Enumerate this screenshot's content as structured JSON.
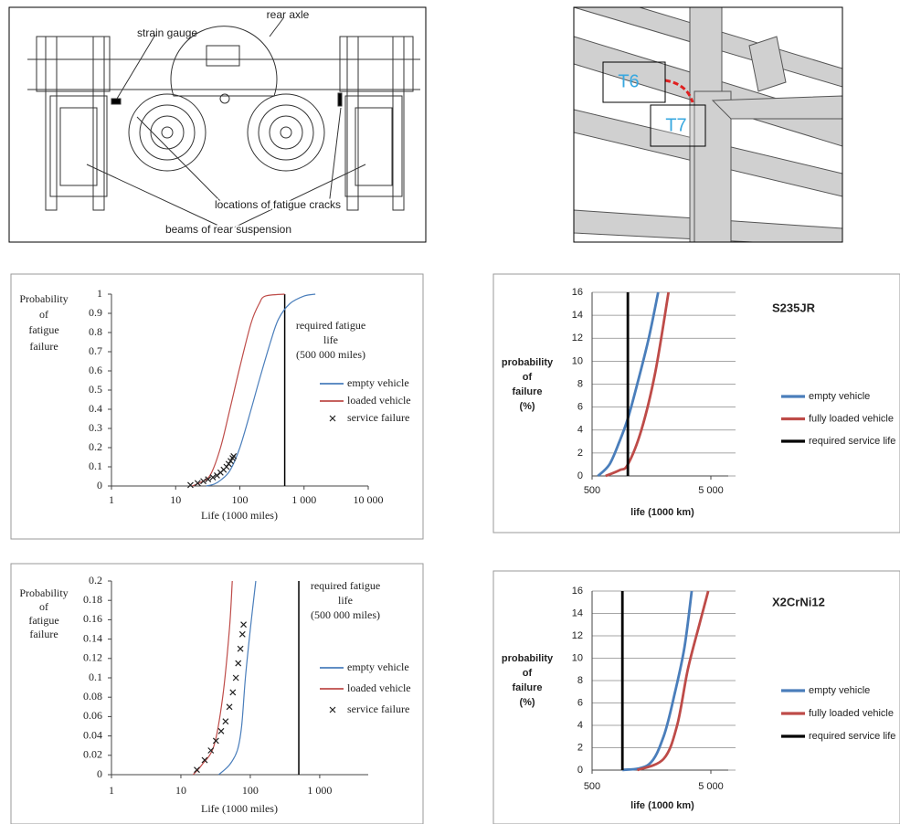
{
  "diagrams": {
    "axle": {
      "labels": [
        "rear axle",
        "strain gauge",
        "locations of fatigue cracks",
        "beams of rear suspension"
      ]
    },
    "frame": {
      "labels": [
        "T6",
        "T7"
      ]
    }
  },
  "chart_data": [
    {
      "type": "line",
      "xscale": "log",
      "grid": false,
      "legend": "right",
      "ylabel": [
        "Probability",
        "of",
        "fatigue",
        "failure"
      ],
      "xlabel": "Life (1000 miles)",
      "annotation": [
        "required fatigue",
        "life",
        "(500 000 miles)"
      ],
      "reference_x": 500,
      "xlim": [
        1,
        10000
      ],
      "xticks": [
        1,
        10,
        100,
        {
          "value": 1000,
          "label": "1 000"
        },
        {
          "value": 10000,
          "label": "10 000"
        }
      ],
      "ylim": [
        0,
        1
      ],
      "yticks": [
        0,
        0.1,
        0.2,
        0.3,
        0.4,
        0.5,
        0.6,
        0.7,
        0.8,
        0.9,
        1
      ],
      "series": [
        {
          "name": "empty vehicle",
          "color": "#4a7ebb",
          "style": "line",
          "x": [
            30,
            40,
            50,
            70,
            100,
            150,
            200,
            300,
            400,
            600,
            1000,
            1500
          ],
          "values": [
            0,
            0.01,
            0.03,
            0.08,
            0.2,
            0.4,
            0.55,
            0.75,
            0.87,
            0.95,
            0.99,
            1
          ]
        },
        {
          "name": "loaded vehicle",
          "color": "#be4b48",
          "style": "line",
          "x": [
            18,
            25,
            35,
            50,
            70,
            100,
            150,
            200,
            250,
            500
          ],
          "values": [
            0,
            0.02,
            0.06,
            0.2,
            0.4,
            0.62,
            0.85,
            0.95,
            0.99,
            1
          ]
        },
        {
          "name": "service failure",
          "color": "#222222",
          "style": "x",
          "x": [
            17,
            22,
            27,
            32,
            38,
            44,
            50,
            56,
            62,
            67,
            72,
            77,
            80
          ],
          "values": [
            0.005,
            0.015,
            0.025,
            0.035,
            0.045,
            0.055,
            0.07,
            0.085,
            0.1,
            0.115,
            0.13,
            0.145,
            0.155
          ]
        }
      ]
    },
    {
      "type": "line",
      "xscale": "log",
      "grid": true,
      "legend": "right",
      "title": "S235JR",
      "ylabel": [
        "probability",
        "of",
        "failure",
        "(%)"
      ],
      "xlabel": "life (1000 km)",
      "xlim": [
        500,
        7000
      ],
      "xticks": [
        500,
        {
          "value": 5000,
          "label": "5 000"
        }
      ],
      "ylim": [
        0,
        16
      ],
      "yticks": [
        0,
        2,
        4,
        6,
        8,
        10,
        12,
        14,
        16
      ],
      "series": [
        {
          "name": "empty vehicle",
          "color": "#4a7ebb",
          "style": "line",
          "x": [
            560,
            700,
            850,
            1000,
            1200,
            1500,
            1800
          ],
          "values": [
            0,
            1,
            3,
            5,
            8,
            12,
            16
          ]
        },
        {
          "name": "fully loaded vehicle",
          "color": "#be4b48",
          "style": "line",
          "x": [
            650,
            850,
            1000,
            1300,
            1700,
            2200
          ],
          "values": [
            0,
            0.5,
            1,
            4,
            9,
            16
          ]
        },
        {
          "name": "required service life",
          "color": "#000000",
          "style": "line",
          "x": [
            1000,
            1000
          ],
          "values": [
            0,
            16
          ]
        }
      ]
    },
    {
      "type": "line",
      "xscale": "log",
      "grid": false,
      "legend": "right",
      "ylabel": [
        "Probability",
        "of",
        "fatigue",
        "failure"
      ],
      "xlabel": "Life (1000 miles)",
      "annotation": [
        "required fatigue",
        "life",
        "(500 000 miles)"
      ],
      "reference_x": 500,
      "xlim": [
        1,
        5000
      ],
      "xticks": [
        1,
        10,
        100,
        {
          "value": 1000,
          "label": "1 000"
        }
      ],
      "ylim": [
        0,
        0.2
      ],
      "yticks": [
        0,
        0.02,
        0.04,
        0.06,
        0.08,
        0.1,
        0.12,
        0.14,
        0.16,
        0.18,
        0.2
      ],
      "series": [
        {
          "name": "empty vehicle",
          "color": "#4a7ebb",
          "style": "line",
          "x": [
            35,
            50,
            65,
            75,
            85,
            100,
            120
          ],
          "values": [
            0,
            0.01,
            0.025,
            0.05,
            0.1,
            0.15,
            0.2
          ]
        },
        {
          "name": "loaded vehicle",
          "color": "#be4b48",
          "style": "line",
          "x": [
            15,
            20,
            30,
            40,
            50,
            55
          ],
          "values": [
            0,
            0.01,
            0.03,
            0.08,
            0.15,
            0.2
          ]
        },
        {
          "name": "service failure",
          "color": "#222222",
          "style": "x",
          "x": [
            17,
            22,
            27,
            32,
            38,
            44,
            50,
            56,
            62,
            67,
            72,
            77,
            80
          ],
          "values": [
            0.005,
            0.015,
            0.025,
            0.035,
            0.045,
            0.055,
            0.07,
            0.085,
            0.1,
            0.115,
            0.13,
            0.145,
            0.155
          ]
        }
      ]
    },
    {
      "type": "line",
      "xscale": "log",
      "grid": true,
      "legend": "right",
      "title": "X2CrNi12",
      "ylabel": [
        "probability",
        "of",
        "failure",
        "(%)"
      ],
      "xlabel": "life (1000 km)",
      "xlim": [
        500,
        7000
      ],
      "xticks": [
        500,
        {
          "value": 5000,
          "label": "5 000"
        }
      ],
      "ylim": [
        0,
        16
      ],
      "yticks": [
        0,
        2,
        4,
        6,
        8,
        10,
        12,
        14,
        16
      ],
      "series": [
        {
          "name": "empty vehicle",
          "color": "#4a7ebb",
          "style": "line",
          "x": [
            900,
            1500,
            2000,
            2500,
            3000,
            3450
          ],
          "values": [
            0,
            0.5,
            3,
            7,
            11,
            16
          ]
        },
        {
          "name": "fully loaded vehicle",
          "color": "#be4b48",
          "style": "line",
          "x": [
            1200,
            2000,
            2600,
            3200,
            4000,
            4750
          ],
          "values": [
            0,
            1,
            4,
            9,
            13,
            16
          ]
        },
        {
          "name": "required service life",
          "color": "#000000",
          "style": "line",
          "x": [
            900,
            900
          ],
          "values": [
            0,
            16
          ]
        }
      ]
    }
  ]
}
